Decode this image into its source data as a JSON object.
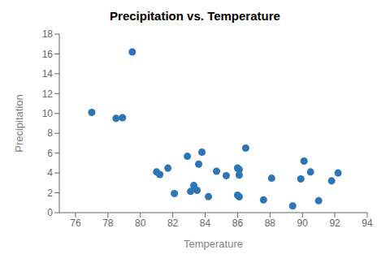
{
  "chart_data": {
    "type": "scatter",
    "title": "Precipitation vs. Temperature",
    "xlabel": "Temperature",
    "ylabel": "Precipitation",
    "x": [
      77.0,
      78.5,
      79.5,
      78.9,
      81.2,
      81.0,
      81.7,
      82.1,
      82.9,
      83.1,
      83.3,
      83.5,
      83.6,
      83.8,
      84.2,
      84.7,
      85.3,
      86.0,
      86.0,
      86.1,
      86.1,
      86.1,
      86.5,
      87.6,
      88.1,
      89.4,
      89.9,
      90.1,
      90.5,
      91.0,
      91.8,
      92.2
    ],
    "values": [
      10.1,
      9.5,
      16.2,
      9.57,
      3.84,
      4.1,
      4.49,
      1.92,
      5.68,
      2.14,
      2.73,
      2.25,
      4.89,
      6.1,
      1.61,
      4.17,
      3.73,
      1.76,
      4.5,
      4.34,
      1.59,
      3.78,
      6.5,
      1.28,
      3.47,
      0.67,
      3.39,
      5.2,
      4.1,
      1.2,
      3.2,
      4.0
    ],
    "color": "#2e75b6",
    "xlim": [
      75,
      94
    ],
    "xticks": [
      76,
      78,
      80,
      82,
      84,
      86,
      88,
      90,
      92,
      94
    ],
    "ylim": [
      0,
      18
    ],
    "yticks": [
      0,
      2,
      4,
      6,
      8,
      10,
      12,
      14,
      16,
      18
    ],
    "grid": false
  }
}
